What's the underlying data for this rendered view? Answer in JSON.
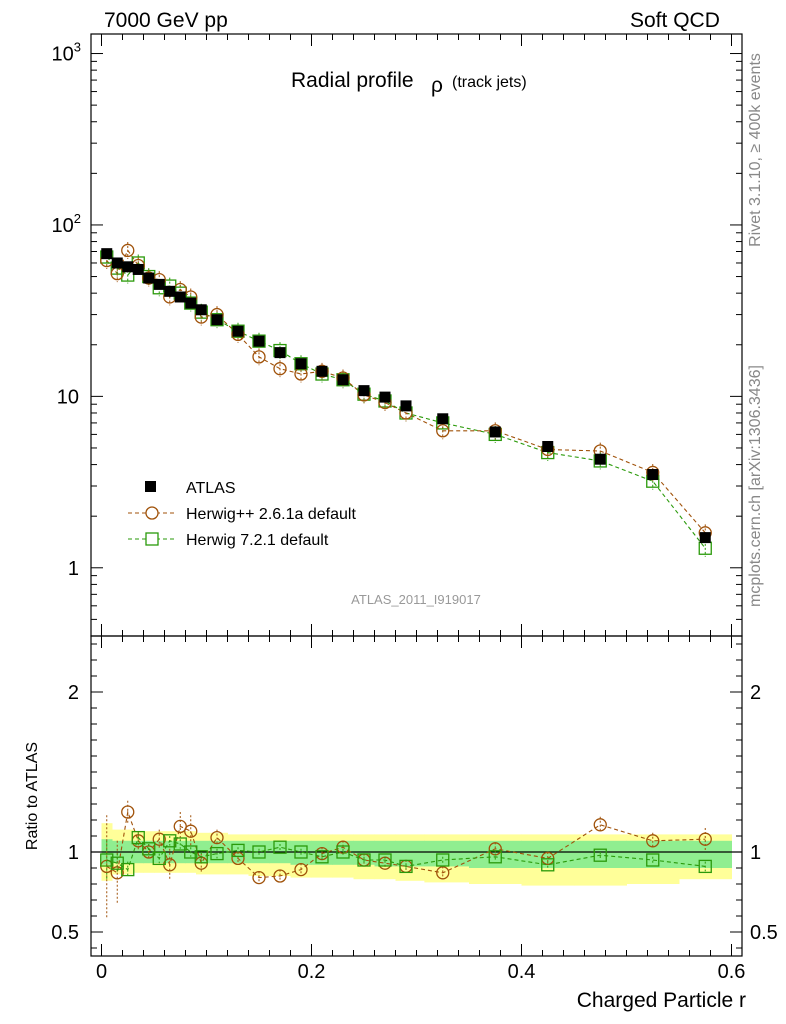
{
  "header": {
    "left": "7000 GeV pp",
    "right": "Soft QCD"
  },
  "side": {
    "rivet": "Rivet 3.1.10, ≥ 400k events",
    "source": "mcplots.cern.ch [arXiv:1306.3436]"
  },
  "analysis_id": "ATLAS_2011_I919017",
  "colors": {
    "data": "#000000",
    "herwigpp": "#a0520a",
    "herwig7": "#2a9a0a",
    "band_yellow": "#ffff99",
    "band_green": "#90ee90"
  },
  "chart_data": [
    {
      "type": "scatter",
      "panel": "main",
      "title": "Radial profile",
      "title_symbol": "ρ",
      "title_sub": "(track jets)",
      "yscale": "log",
      "ylim": [
        0.4,
        1300
      ],
      "xlim": [
        -0.01,
        0.61
      ],
      "y_ticks": [
        {
          "v": 1000,
          "base": "10",
          "exp": "3"
        },
        {
          "v": 100,
          "base": "10",
          "exp": "2"
        },
        {
          "v": 10,
          "label": "10"
        },
        {
          "v": 1,
          "label": "1"
        }
      ],
      "legend": {
        "position": "bottom-left",
        "entries": [
          {
            "label": "ATLAS",
            "marker": "filled-square",
            "color": "#000000"
          },
          {
            "label": "Herwig++ 2.6.1a default",
            "marker": "open-circle",
            "color": "#a0520a"
          },
          {
            "label": "Herwig 7.2.1 default",
            "marker": "open-square",
            "color": "#2a9a0a"
          }
        ]
      },
      "x": [
        0.005,
        0.015,
        0.025,
        0.035,
        0.045,
        0.055,
        0.065,
        0.075,
        0.085,
        0.095,
        0.11,
        0.13,
        0.15,
        0.17,
        0.19,
        0.21,
        0.23,
        0.25,
        0.27,
        0.29,
        0.325,
        0.375,
        0.425,
        0.475,
        0.525,
        0.575
      ],
      "series": [
        {
          "name": "ATLAS",
          "values": [
            68,
            60,
            57,
            55,
            49,
            45,
            41,
            38,
            35,
            32,
            28,
            24,
            21,
            18,
            15.5,
            14,
            12.5,
            10.8,
            9.9,
            8.8,
            7.4,
            6.2,
            5.1,
            4.3,
            3.5,
            1.5
          ]
        },
        {
          "name": "Herwig++ 2.6.1a default",
          "values": [
            62,
            52,
            71,
            58,
            49,
            48,
            38,
            42,
            38,
            29,
            30,
            23,
            17,
            14.5,
            13.5,
            14,
            12.8,
            10.2,
            9.2,
            8.0,
            6.3,
            6.3,
            4.9,
            4.8,
            3.6,
            1.6
          ]
        },
        {
          "name": "Herwig 7.2.1 default",
          "values": [
            65,
            56,
            51,
            60,
            50,
            43,
            44,
            40,
            35,
            31,
            28,
            24,
            21,
            18.5,
            15.5,
            13.5,
            12.5,
            10.3,
            9.4,
            8.0,
            7.0,
            6.0,
            4.7,
            4.2,
            3.2,
            1.3
          ]
        }
      ]
    },
    {
      "type": "scatter",
      "panel": "ratio",
      "ylabel": "Ratio to ATLAS",
      "xlabel": "Charged Particle r",
      "ylim": [
        0.35,
        2.35
      ],
      "xlim": [
        -0.01,
        0.61
      ],
      "x_ticks": [
        {
          "v": 0,
          "label": "0"
        },
        {
          "v": 0.2,
          "label": "0.2"
        },
        {
          "v": 0.4,
          "label": "0.4"
        },
        {
          "v": 0.6,
          "label": "0.6"
        }
      ],
      "y_ticks": [
        {
          "v": 2,
          "label": "2"
        },
        {
          "v": 1,
          "label": "1"
        },
        {
          "v": 0.5,
          "label": "0.5"
        }
      ],
      "x": [
        0.005,
        0.015,
        0.025,
        0.035,
        0.045,
        0.055,
        0.065,
        0.075,
        0.085,
        0.095,
        0.11,
        0.13,
        0.15,
        0.17,
        0.19,
        0.21,
        0.23,
        0.25,
        0.27,
        0.29,
        0.325,
        0.375,
        0.425,
        0.475,
        0.525,
        0.575
      ],
      "bands": {
        "yellow_lo": [
          0.82,
          0.86,
          0.86,
          0.87,
          0.87,
          0.87,
          0.87,
          0.87,
          0.87,
          0.86,
          0.86,
          0.86,
          0.85,
          0.85,
          0.84,
          0.84,
          0.84,
          0.83,
          0.83,
          0.82,
          0.81,
          0.8,
          0.79,
          0.79,
          0.8,
          0.83
        ],
        "yellow_hi": [
          1.18,
          1.14,
          1.14,
          1.13,
          1.13,
          1.13,
          1.13,
          1.13,
          1.13,
          1.12,
          1.12,
          1.11,
          1.11,
          1.11,
          1.11,
          1.11,
          1.11,
          1.11,
          1.11,
          1.11,
          1.11,
          1.11,
          1.11,
          1.11,
          1.11,
          1.11
        ],
        "green_lo": [
          0.92,
          0.93,
          0.93,
          0.93,
          0.93,
          0.93,
          0.93,
          0.93,
          0.93,
          0.93,
          0.93,
          0.93,
          0.93,
          0.93,
          0.92,
          0.92,
          0.92,
          0.92,
          0.91,
          0.91,
          0.91,
          0.9,
          0.9,
          0.9,
          0.9,
          0.9
        ],
        "green_hi": [
          1.08,
          1.07,
          1.07,
          1.07,
          1.07,
          1.07,
          1.07,
          1.07,
          1.07,
          1.07,
          1.07,
          1.07,
          1.07,
          1.07,
          1.07,
          1.07,
          1.07,
          1.07,
          1.07,
          1.07,
          1.07,
          1.07,
          1.07,
          1.07,
          1.07,
          1.07
        ]
      },
      "series": [
        {
          "name": "Herwig++ 2.6.1a default",
          "values": [
            0.91,
            0.87,
            1.25,
            1.07,
            1.0,
            1.08,
            0.92,
            1.16,
            1.13,
            0.93,
            1.09,
            0.96,
            0.84,
            0.85,
            0.89,
            0.99,
            1.03,
            0.95,
            0.93,
            0.91,
            0.87,
            1.02,
            0.96,
            1.17,
            1.07,
            1.08
          ],
          "err": [
            0.32,
            0.2,
            0.07,
            0.06,
            0.05,
            0.06,
            0.1,
            0.09,
            0.1,
            0.06,
            0.05,
            0.04,
            0.04,
            0.04,
            0.04,
            0.04,
            0.04,
            0.04,
            0.04,
            0.04,
            0.04,
            0.04,
            0.04,
            0.05,
            0.05,
            0.07
          ]
        },
        {
          "name": "Herwig 7.2.1 default",
          "values": [
            0.95,
            0.93,
            0.89,
            1.09,
            1.02,
            0.96,
            1.07,
            1.05,
            1.0,
            0.97,
            0.99,
            1.01,
            1.0,
            1.03,
            1.0,
            0.97,
            1.0,
            0.95,
            0.95,
            0.91,
            0.95,
            0.97,
            0.92,
            0.98,
            0.95,
            0.91
          ],
          "err": [
            0.12,
            0.06,
            0.05,
            0.03,
            0.03,
            0.03,
            0.03,
            0.03,
            0.03,
            0.03,
            0.03,
            0.02,
            0.02,
            0.02,
            0.02,
            0.02,
            0.02,
            0.02,
            0.02,
            0.02,
            0.02,
            0.02,
            0.02,
            0.02,
            0.02,
            0.03
          ]
        }
      ]
    }
  ]
}
